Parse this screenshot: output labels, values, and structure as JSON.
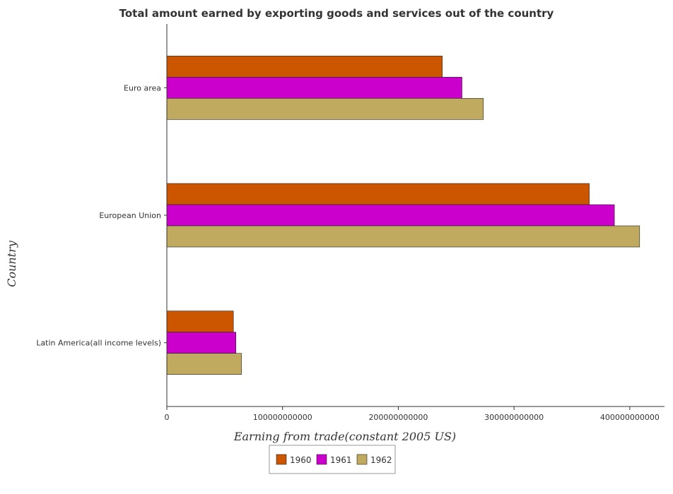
{
  "chart_data": {
    "type": "bar",
    "orientation": "horizontal",
    "title": "Total amount earned by exporting goods and services out of the country",
    "xlabel": "Earning from trade(constant 2005 US)",
    "ylabel": "Country",
    "categories": [
      "Euro area",
      "European Union",
      "Latin America(all income levels)"
    ],
    "series": [
      {
        "name": "1960",
        "color": "#cc5500",
        "values": [
          238000000000,
          365000000000,
          57500000000
        ]
      },
      {
        "name": "1961",
        "color": "#cc00cc",
        "values": [
          255000000000,
          386700000000,
          59700000000
        ]
      },
      {
        "name": "1962",
        "color": "#bfaa5f",
        "values": [
          273500000000,
          408500000000,
          64500000000
        ]
      }
    ],
    "xlim": [
      0,
      430000000000
    ],
    "xticks": [
      0,
      100000000000,
      200000000000,
      300000000000,
      400000000000
    ],
    "xtick_labels": [
      "0",
      "100000000000",
      "200000000000",
      "300000000000",
      "400000000000"
    ],
    "grid": false,
    "legend_position": "bottom-center"
  }
}
